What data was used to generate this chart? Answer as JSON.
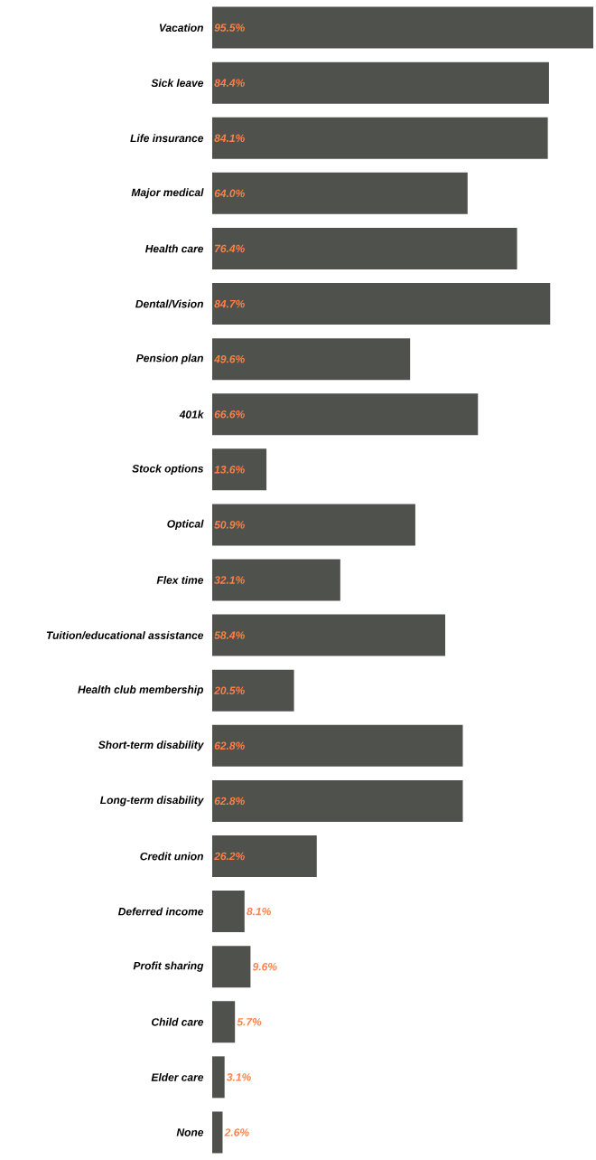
{
  "chart_data": {
    "type": "bar",
    "orientation": "horizontal",
    "color": "#4f524c",
    "categories": [
      "Vacation",
      "Sick leave",
      "Life insurance",
      "Major medical",
      "Health care",
      "Dental/Vision",
      "Pension plan",
      "401k",
      "Stock options",
      "Optical",
      "Flex time",
      "Tuition/educational assistance",
      "Health club membership",
      "Short-term disability",
      "Long-term disability",
      "Credit union",
      "Deferred income",
      "Profit sharing",
      "Child care",
      "Elder care",
      "None"
    ],
    "values": [
      95.5,
      84.4,
      84.1,
      64.0,
      76.4,
      84.7,
      49.6,
      66.6,
      13.6,
      50.9,
      32.1,
      58.4,
      20.5,
      62.8,
      62.8,
      26.2,
      8.1,
      9.6,
      5.7,
      3.1,
      2.6
    ],
    "value_labels": [
      "95.5%",
      "84.4%",
      "84.1%",
      "64.0%",
      "76.4%",
      "84.7%",
      "49.6%",
      "66.6%",
      "13.6%",
      "50.9%",
      "32.1%",
      "58.4%",
      "20.5%",
      "62.8%",
      "62.8%",
      "26.2%",
      "8.1%",
      "9.6%",
      "5.7%",
      "3.1%",
      "2.6%"
    ]
  }
}
